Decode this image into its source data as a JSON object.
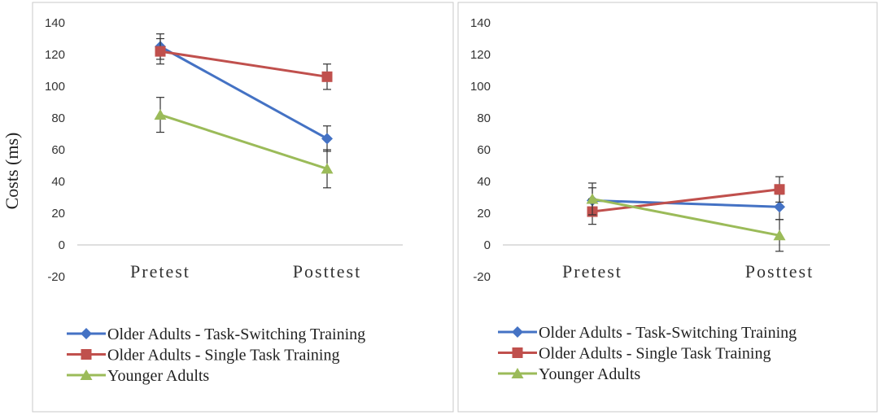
{
  "chart_data": [
    {
      "type": "line",
      "ylabel": "Costs (ms)",
      "xlabel": "",
      "categories": [
        "Pretest",
        "Posttest"
      ],
      "ylim": [
        -20,
        140
      ],
      "yticks": [
        -20,
        0,
        20,
        40,
        60,
        80,
        100,
        120,
        140
      ],
      "legend_position": "bottom",
      "series": [
        {
          "name": "Older Adults - Task-Switching Training",
          "values": [
            125,
            67
          ],
          "errors": [
            8,
            8
          ],
          "color": "#4472c4",
          "marker": "diamond"
        },
        {
          "name": "Older Adults - Single Task Training",
          "values": [
            122,
            106
          ],
          "errors": [
            8,
            8
          ],
          "color": "#c0504d",
          "marker": "square"
        },
        {
          "name": "Younger Adults",
          "values": [
            82,
            48
          ],
          "errors": [
            11,
            12
          ],
          "color": "#9bbb59",
          "marker": "triangle"
        }
      ]
    },
    {
      "type": "line",
      "ylabel": "",
      "xlabel": "",
      "categories": [
        "Pretest",
        "Posttest"
      ],
      "ylim": [
        -20,
        140
      ],
      "yticks": [
        -20,
        0,
        20,
        40,
        60,
        80,
        100,
        120,
        140
      ],
      "legend_position": "bottom",
      "series": [
        {
          "name": "Older Adults - Task-Switching Training",
          "values": [
            28,
            24
          ],
          "errors": [
            8,
            8
          ],
          "color": "#4472c4",
          "marker": "diamond"
        },
        {
          "name": "Older Adults - Single Task Training",
          "values": [
            21,
            35
          ],
          "errors": [
            8,
            8
          ],
          "color": "#c0504d",
          "marker": "square"
        },
        {
          "name": "Younger Adults",
          "values": [
            29,
            6
          ],
          "errors": [
            10,
            10
          ],
          "color": "#9bbb59",
          "marker": "triangle"
        }
      ]
    }
  ]
}
